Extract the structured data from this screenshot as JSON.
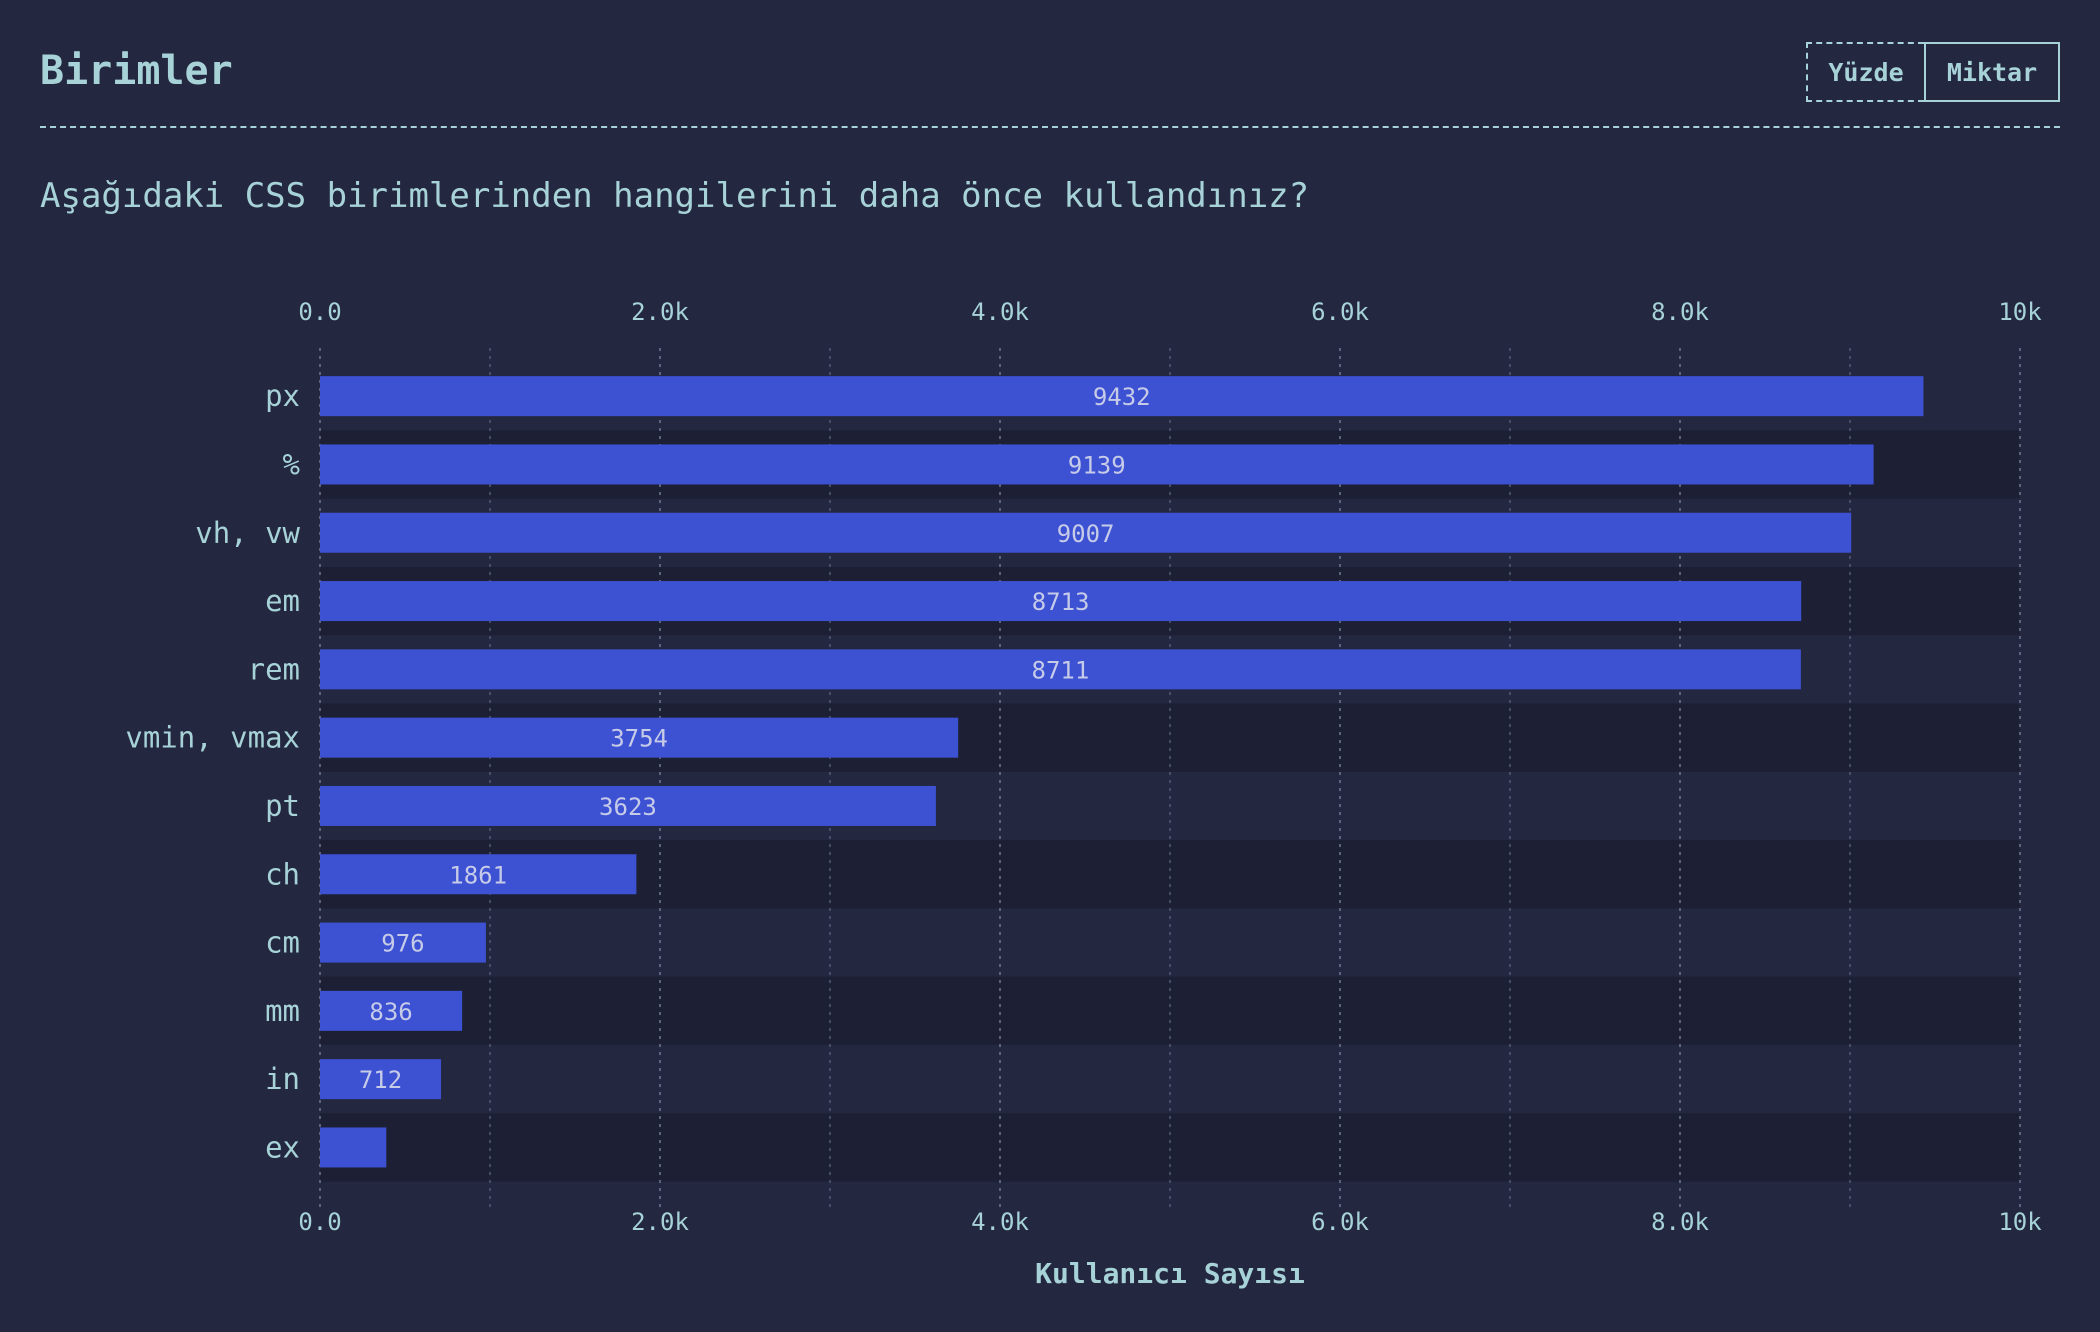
{
  "header": {
    "title": "Birimler",
    "toggle": {
      "percent_label": "Yüzde",
      "count_label": "Miktar"
    }
  },
  "question": "Aşağıdaki CSS birimlerinden hangilerini daha önce kullandınız?",
  "colors": {
    "background": "#232740",
    "bar": "#3d51d3",
    "text": "#a7d3d8",
    "row_alt": "#1d2034"
  },
  "chart_data": {
    "type": "bar",
    "orientation": "horizontal",
    "categories": [
      "px",
      "%",
      "vh, vw",
      "em",
      "rem",
      "vmin, vmax",
      "pt",
      "ch",
      "cm",
      "mm",
      "in",
      "ex"
    ],
    "values": [
      9432,
      9139,
      9007,
      8713,
      8711,
      3754,
      3623,
      1861,
      976,
      836,
      712,
      390
    ],
    "value_labels": [
      "9432",
      "9139",
      "9007",
      "8713",
      "8711",
      "3754",
      "3623",
      "1861",
      "976",
      "836",
      "712",
      ""
    ],
    "xlabel": "Kullanıcı Sayısı",
    "xlim": [
      0,
      10000
    ],
    "xticks": [
      0,
      2000,
      4000,
      6000,
      8000,
      10000
    ],
    "xtick_labels": [
      "0.0",
      "2.0k",
      "4.0k",
      "6.0k",
      "8.0k",
      "10k"
    ],
    "grid": true
  }
}
